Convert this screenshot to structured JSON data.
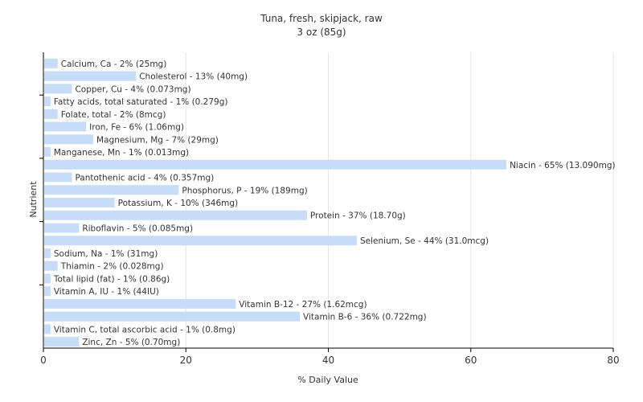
{
  "chart_data": {
    "type": "bar",
    "orientation": "horizontal",
    "title": "Tuna, fresh, skipjack, raw",
    "subtitle": "3 oz (85g)",
    "xlabel": "% Daily Value",
    "ylabel": "Nutrient",
    "xlim": [
      0,
      80
    ],
    "xticks": [
      0,
      20,
      40,
      60,
      80
    ],
    "grid": true,
    "bar_color": "#c6dcf7",
    "categories": [
      "Calcium, Ca",
      "Cholesterol",
      "Copper, Cu",
      "Fatty acids, total saturated",
      "Folate, total",
      "Iron, Fe",
      "Magnesium, Mg",
      "Manganese, Mn",
      "Niacin",
      "Pantothenic acid",
      "Phosphorus, P",
      "Potassium, K",
      "Protein",
      "Riboflavin",
      "Selenium, Se",
      "Sodium, Na",
      "Thiamin",
      "Total lipid (fat)",
      "Vitamin A, IU",
      "Vitamin B-12",
      "Vitamin B-6",
      "Vitamin C, total ascorbic acid",
      "Zinc, Zn"
    ],
    "values": [
      2,
      13,
      4,
      1,
      2,
      6,
      7,
      1,
      65,
      4,
      19,
      10,
      37,
      5,
      44,
      1,
      2,
      1,
      1,
      27,
      36,
      1,
      5
    ],
    "labels": [
      "Calcium, Ca - 2% (25mg)",
      "Cholesterol - 13% (40mg)",
      "Copper, Cu - 4% (0.073mg)",
      "Fatty acids, total saturated - 1% (0.279g)",
      "Folate, total - 2% (8mcg)",
      "Iron, Fe - 6% (1.06mg)",
      "Magnesium, Mg - 7% (29mg)",
      "Manganese, Mn - 1% (0.013mg)",
      "Niacin - 65% (13.090mg)",
      "Pantothenic acid - 4% (0.357mg)",
      "Phosphorus, P - 19% (189mg)",
      "Potassium, K - 10% (346mg)",
      "Protein - 37% (18.70g)",
      "Riboflavin - 5% (0.085mg)",
      "Selenium, Se - 44% (31.0mcg)",
      "Sodium, Na - 1% (31mg)",
      "Thiamin - 2% (0.028mg)",
      "Total lipid (fat) - 1% (0.86g)",
      "Vitamin A, IU - 1% (44IU)",
      "Vitamin B-12 - 27% (1.62mcg)",
      "Vitamin B-6 - 36% (0.722mg)",
      "Vitamin C, total ascorbic acid - 1% (0.8mg)",
      "Zinc, Zn - 5% (0.70mg)"
    ]
  }
}
